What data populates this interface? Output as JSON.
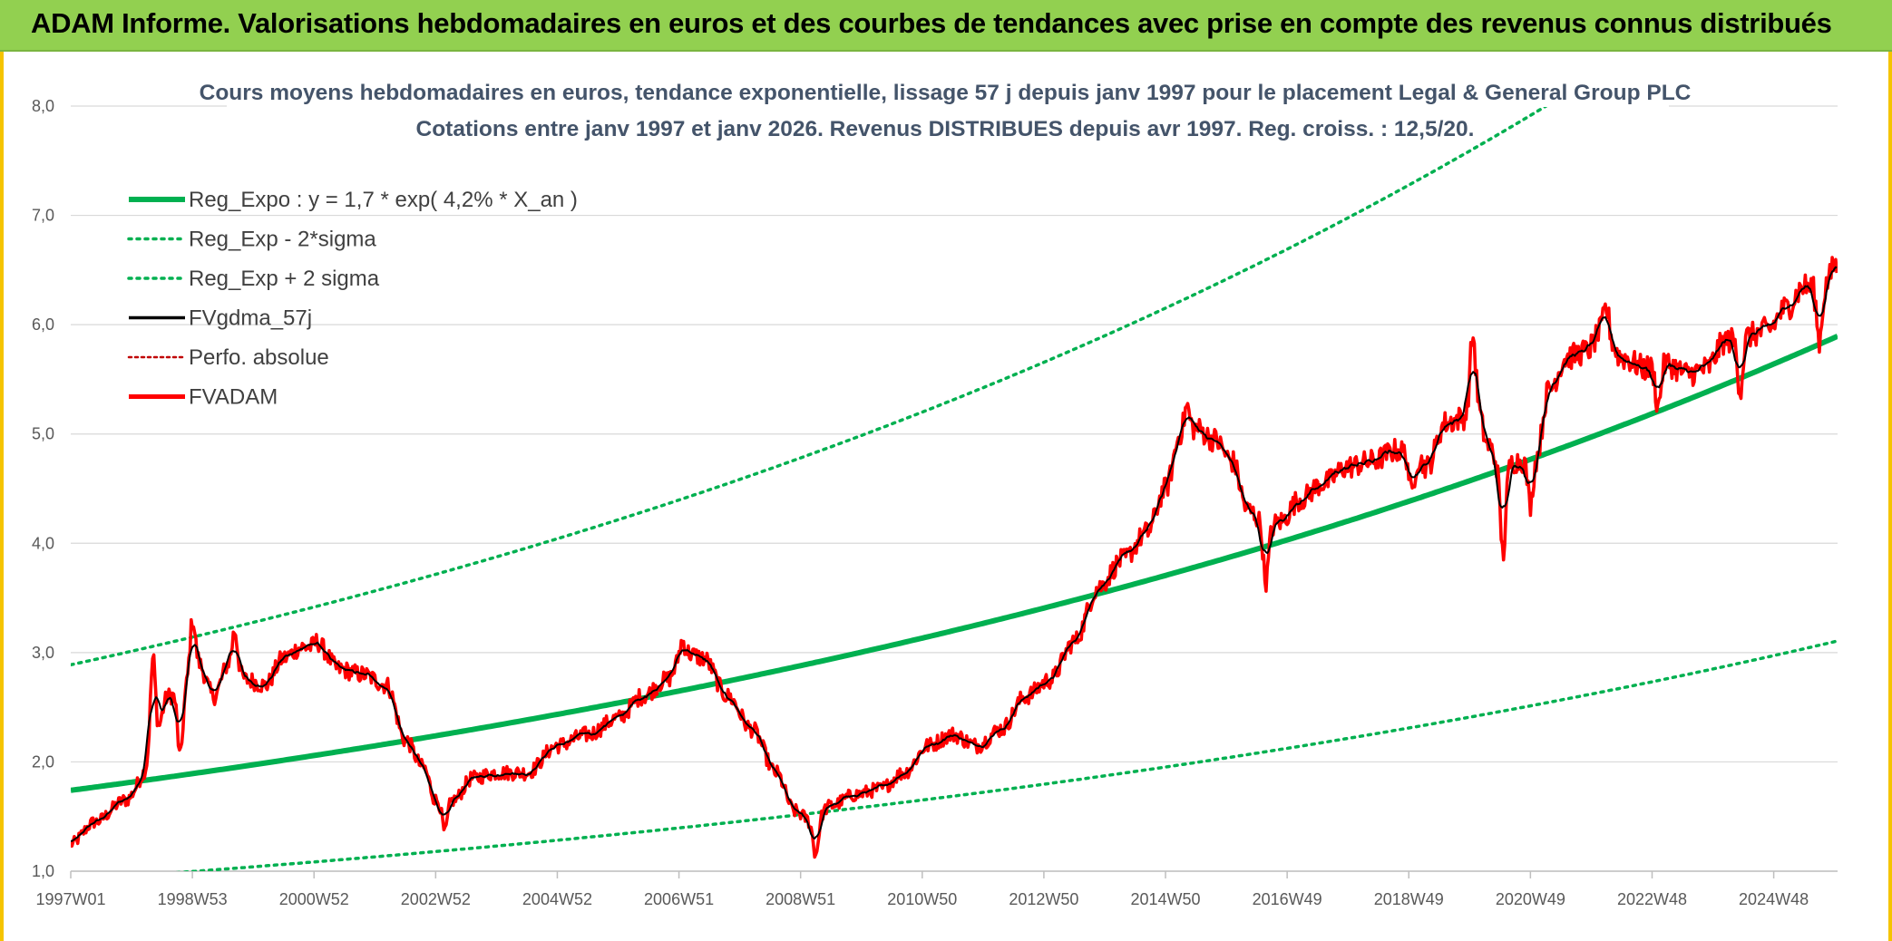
{
  "banner": {
    "title": "ADAM Informe. Valorisations hebdomadaires en euros et des courbes de tendances avec prise en compte des revenus connus distribués"
  },
  "chart_data": {
    "type": "line",
    "title_line1": "Cours moyens hebdomadaires en euros, tendance exponentielle, lissage 57 j depuis janv 1997 pour le placement Legal & General Group PLC",
    "title_line2": "Cotations entre janv 1997 et janv 2026. Revenus DISTRIBUES depuis avr 1997. Reg. croiss. : 12,5/20.",
    "ylim": [
      1.0,
      8.0
    ],
    "xlim": [
      1997.0,
      2026.05
    ],
    "y_ticks": [
      1.0,
      2.0,
      3.0,
      4.0,
      5.0,
      6.0,
      7.0,
      8.0
    ],
    "y_tick_labels": [
      "1,0",
      "2,0",
      "3,0",
      "4,0",
      "5,0",
      "6,0",
      "7,0",
      "8,0"
    ],
    "x_ticks": [
      {
        "label": "1997W01",
        "x": 1997.0
      },
      {
        "label": "1998W53",
        "x": 1999.0
      },
      {
        "label": "2000W52",
        "x": 2001.0
      },
      {
        "label": "2002W52",
        "x": 2003.0
      },
      {
        "label": "2004W52",
        "x": 2005.0
      },
      {
        "label": "2006W51",
        "x": 2007.0
      },
      {
        "label": "2008W51",
        "x": 2009.0
      },
      {
        "label": "2010W50",
        "x": 2011.0
      },
      {
        "label": "2012W50",
        "x": 2013.0
      },
      {
        "label": "2014W50",
        "x": 2015.0
      },
      {
        "label": "2016W49",
        "x": 2017.0
      },
      {
        "label": "2018W49",
        "x": 2019.0
      },
      {
        "label": "2020W49",
        "x": 2021.0
      },
      {
        "label": "2022W48",
        "x": 2023.0
      },
      {
        "label": "2024W48",
        "x": 2025.0
      }
    ],
    "grid": "horizontal",
    "legend_position": "top-left",
    "colors": {
      "reg_expo": "#00b050",
      "bands": "#00b050",
      "fvgdma": "#000000",
      "perfo": "#c00000",
      "fvadam": "#ff0000"
    },
    "regression": {
      "a": 1.74,
      "rate": 0.042,
      "sigma_low": 0.527,
      "sigma_high": 1.66
    },
    "series": [
      {
        "name": "Reg_Expo : y = 1,7 * exp( 4,2% *  X_an )",
        "style": "solid-thick"
      },
      {
        "name": "Reg_Exp - 2*sigma",
        "style": "dotted"
      },
      {
        "name": "Reg_Exp + 2 sigma",
        "style": "dotted"
      },
      {
        "name": "FVgdma_57j",
        "style": "solid"
      },
      {
        "name": "Perfo. absolue",
        "style": "dotted"
      },
      {
        "name": "FVADAM",
        "style": "solid-thick"
      }
    ],
    "fvadam_keypoints": [
      [
        1997.0,
        1.25
      ],
      [
        1997.4,
        1.45
      ],
      [
        1997.9,
        1.65
      ],
      [
        1998.3,
        1.95
      ],
      [
        1998.6,
        2.6
      ],
      [
        1998.9,
        2.7
      ],
      [
        1999.1,
        2.9
      ],
      [
        1999.35,
        2.6
      ],
      [
        1999.6,
        2.9
      ],
      [
        1999.9,
        2.75
      ],
      [
        2000.2,
        2.7
      ],
      [
        2000.5,
        2.95
      ],
      [
        2000.8,
        3.05
      ],
      [
        2001.1,
        3.05
      ],
      [
        2001.4,
        2.85
      ],
      [
        2001.8,
        2.8
      ],
      [
        2002.2,
        2.7
      ],
      [
        2002.5,
        2.2
      ],
      [
        2002.8,
        1.95
      ],
      [
        2003.0,
        1.65
      ],
      [
        2003.3,
        1.65
      ],
      [
        2003.6,
        1.85
      ],
      [
        2004.0,
        1.9
      ],
      [
        2004.5,
        1.9
      ],
      [
        2005.0,
        2.15
      ],
      [
        2005.5,
        2.25
      ],
      [
        2006.0,
        2.4
      ],
      [
        2006.4,
        2.6
      ],
      [
        2006.8,
        2.75
      ],
      [
        2007.1,
        3.0
      ],
      [
        2007.4,
        2.95
      ],
      [
        2007.8,
        2.6
      ],
      [
        2008.2,
        2.3
      ],
      [
        2008.6,
        1.9
      ],
      [
        2008.9,
        1.55
      ],
      [
        2009.2,
        1.45
      ],
      [
        2009.5,
        1.6
      ],
      [
        2009.9,
        1.7
      ],
      [
        2010.3,
        1.75
      ],
      [
        2010.7,
        1.9
      ],
      [
        2011.1,
        2.15
      ],
      [
        2011.5,
        2.25
      ],
      [
        2011.9,
        2.15
      ],
      [
        2012.3,
        2.3
      ],
      [
        2012.7,
        2.6
      ],
      [
        2013.1,
        2.75
      ],
      [
        2013.5,
        3.1
      ],
      [
        2013.9,
        3.6
      ],
      [
        2014.3,
        3.85
      ],
      [
        2014.7,
        4.1
      ],
      [
        2015.0,
        4.5
      ],
      [
        2015.25,
        5.0
      ],
      [
        2015.5,
        5.05
      ],
      [
        2015.8,
        4.95
      ],
      [
        2016.1,
        4.75
      ],
      [
        2016.35,
        4.3
      ],
      [
        2016.7,
        4.15
      ],
      [
        2016.9,
        4.2
      ],
      [
        2017.2,
        4.4
      ],
      [
        2017.6,
        4.55
      ],
      [
        2018.0,
        4.7
      ],
      [
        2018.4,
        4.75
      ],
      [
        2018.8,
        4.85
      ],
      [
        2019.1,
        4.8
      ],
      [
        2019.3,
        4.7
      ],
      [
        2019.6,
        5.1
      ],
      [
        2019.9,
        5.15
      ],
      [
        2020.1,
        5.3
      ],
      [
        2020.3,
        4.9
      ],
      [
        2020.5,
        4.7
      ],
      [
        2020.8,
        4.75
      ],
      [
        2021.1,
        4.8
      ],
      [
        2021.3,
        5.4
      ],
      [
        2021.6,
        5.7
      ],
      [
        2021.9,
        5.75
      ],
      [
        2022.2,
        5.95
      ],
      [
        2022.5,
        5.7
      ],
      [
        2022.9,
        5.6
      ],
      [
        2023.2,
        5.65
      ],
      [
        2023.6,
        5.55
      ],
      [
        2023.9,
        5.6
      ],
      [
        2024.2,
        5.85
      ],
      [
        2024.6,
        5.9
      ],
      [
        2024.9,
        5.95
      ],
      [
        2025.2,
        6.15
      ],
      [
        2025.5,
        6.35
      ],
      [
        2025.8,
        6.35
      ],
      [
        2026.05,
        6.5
      ]
    ],
    "fvadam_spikes": [
      [
        1998.35,
        2.95
      ],
      [
        1998.8,
        2.05
      ],
      [
        1999.0,
        3.3
      ],
      [
        1999.7,
        3.2
      ],
      [
        2001.05,
        3.1
      ],
      [
        2003.15,
        1.35
      ],
      [
        2007.05,
        3.1
      ],
      [
        2009.25,
        1.15
      ],
      [
        2015.35,
        5.25
      ],
      [
        2016.65,
        3.65
      ],
      [
        2019.05,
        4.45
      ],
      [
        2020.05,
        5.9
      ],
      [
        2020.55,
        3.9
      ],
      [
        2021.0,
        4.35
      ],
      [
        2022.25,
        6.15
      ],
      [
        2023.1,
        5.25
      ],
      [
        2024.45,
        5.4
      ],
      [
        2025.75,
        5.85
      ],
      [
        2026.0,
        6.55
      ]
    ]
  }
}
